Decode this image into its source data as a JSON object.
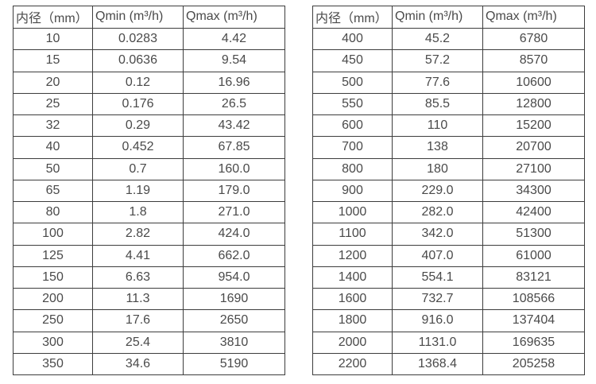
{
  "colors": {
    "background": "#ffffff",
    "border": "#3d3d3d",
    "text": "#4a4a4a"
  },
  "left_table": {
    "headers": [
      "内径（mm）",
      "Qmin (m³/h)",
      "Qmax (m³/h)"
    ],
    "rows": [
      [
        "10",
        "0.0283",
        "4.42"
      ],
      [
        "15",
        "0.0636",
        "9.54"
      ],
      [
        "20",
        "0.12",
        "16.96"
      ],
      [
        "25",
        "0.176",
        "26.5"
      ],
      [
        "32",
        "0.29",
        "43.42"
      ],
      [
        "40",
        "0.452",
        "67.85"
      ],
      [
        "50",
        "0.7",
        "160.0"
      ],
      [
        "65",
        "1.19",
        "179.0"
      ],
      [
        "80",
        "1.8",
        "271.0"
      ],
      [
        "100",
        "2.82",
        "424.0"
      ],
      [
        "125",
        "4.41",
        "662.0"
      ],
      [
        "150",
        "6.63",
        "954.0"
      ],
      [
        "200",
        "11.3",
        "1690"
      ],
      [
        "250",
        "17.6",
        "2650"
      ],
      [
        "300",
        "25.4",
        "3810"
      ],
      [
        "350",
        "34.6",
        "5190"
      ]
    ]
  },
  "right_table": {
    "headers": [
      "内径（mm）",
      "Qmin (m³/h)",
      "Qmax (m³/h)"
    ],
    "rows": [
      [
        "400",
        "45.2",
        "6780"
      ],
      [
        "450",
        "57.2",
        "8570"
      ],
      [
        "500",
        "77.6",
        "10600"
      ],
      [
        "550",
        "85.5",
        "12800"
      ],
      [
        "600",
        "110",
        "15200"
      ],
      [
        "700",
        "138",
        "20700"
      ],
      [
        "800",
        "180",
        "27100"
      ],
      [
        "900",
        "229.0",
        "34300"
      ],
      [
        "1000",
        "282.0",
        "42400"
      ],
      [
        "1100",
        "342.0",
        "51300"
      ],
      [
        "1200",
        "407.0",
        "61000"
      ],
      [
        "1400",
        "554.1",
        "83121"
      ],
      [
        "1600",
        "732.7",
        "108566"
      ],
      [
        "1800",
        "916.0",
        "137404"
      ],
      [
        "2000",
        "1131.0",
        "169635"
      ],
      [
        "2200",
        "1368.4",
        "205258"
      ]
    ]
  }
}
